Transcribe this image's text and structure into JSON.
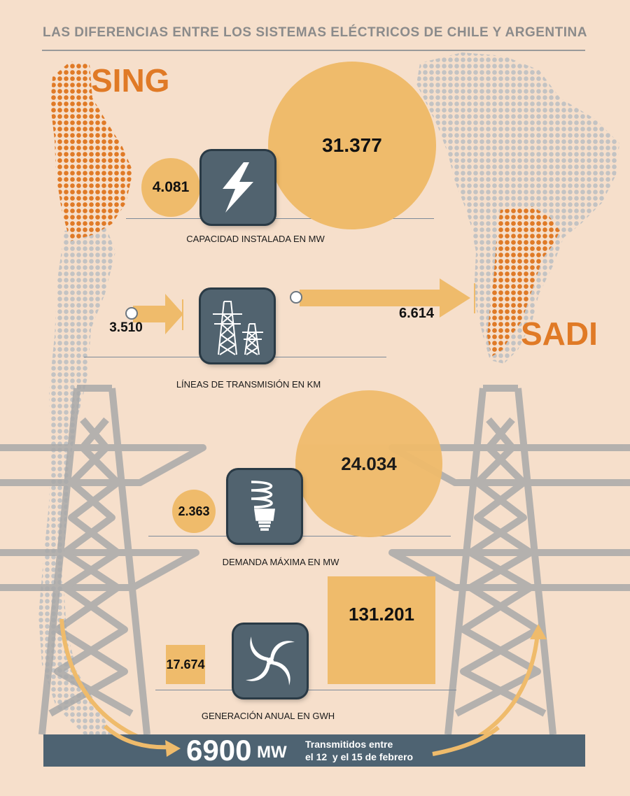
{
  "title": "LAS DIFERENCIAS ENTRE LOS SISTEMAS ELÉCTRICOS DE CHILE Y ARGENTINA",
  "labels": {
    "sing": "SING",
    "sadi": "SADI"
  },
  "metrics": {
    "capacity": {
      "sing": "4.081",
      "sadi": "31.377",
      "caption": "CAPACIDAD INSTALADA EN MW",
      "icon": "lightning-bolt-icon"
    },
    "lines": {
      "sing": "3.510",
      "sadi": "6.614",
      "caption": "LÍNEAS DE TRANSMISIÓN EN KM",
      "icon": "transmission-tower-icon"
    },
    "demand": {
      "sing": "2.363",
      "sadi": "24.034",
      "caption": "DEMANDA MÁXIMA EN MW",
      "icon": "lightbulb-icon"
    },
    "generation": {
      "sing": "17.674",
      "sadi": "131.201",
      "caption": "GENERACIÓN ANUAL EN GWH",
      "icon": "swirl-icon"
    }
  },
  "banner": {
    "value": "6900",
    "unit": "MW",
    "text_line1": "Transmitidos entre",
    "text_line2": "el 12  y el 15 de febrero"
  },
  "colors": {
    "background": "#f6dfcb",
    "accent": "#efbb6b",
    "orange": "#e07a26",
    "dark": "#4e6372",
    "gray": "#b9b9b9"
  }
}
